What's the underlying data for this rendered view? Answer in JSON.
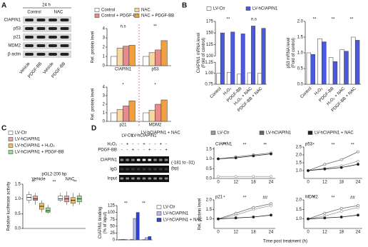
{
  "panel_labels": [
    "A",
    "B",
    "C",
    "D"
  ],
  "blot_a": {
    "time": "24 h",
    "groups": [
      "Control",
      "NAC"
    ],
    "lanes": [
      "Vehicle",
      "PDGF-BB",
      "Vehicle",
      "PDGF-BB"
    ],
    "rows": [
      "CIAPIN1",
      "p53",
      "p21",
      "MDM2",
      "β-actin"
    ]
  },
  "blot_d": {
    "groups": [
      "LV-Ctr",
      "LV-hCIAPIN1",
      "LV-hCIAPIN1 + NAC"
    ],
    "treatments": [
      {
        "name": "H₂O₂",
        "signs": [
          "-",
          "+",
          "-",
          "-",
          "+",
          "-",
          "-",
          "+",
          "-"
        ]
      },
      {
        "name": "PDGF-BB",
        "signs": [
          "-",
          "-",
          "+",
          "-",
          "-",
          "+",
          "-",
          "-",
          "+"
        ]
      }
    ],
    "rows": [
      "CIAPIN1",
      "IgG",
      "Input"
    ],
    "region": "(-181 to -31)",
    "unit": "(bp)"
  },
  "chart_data": [
    {
      "type": "bar",
      "categories": [
        "CIAPIN1",
        "p53"
      ],
      "ylabel": [
        "Rel. protein level"
      ],
      "ylim": [
        0,
        4
      ],
      "yticks": [
        0,
        1,
        2,
        3,
        4
      ],
      "annotations": [
        "n.s",
        "**"
      ],
      "series": [
        {
          "name": "Control",
          "color": "#ffffff",
          "values": [
            1,
            1
          ]
        },
        {
          "name": "NAC",
          "color": "#f7d9a0",
          "values": [
            1.9,
            1.4
          ]
        },
        {
          "name": "Control + PDGF-BB",
          "color": "#e98b8b",
          "values": [
            2.1,
            1.7
          ]
        },
        {
          "name": "NAC + PDGF-BB",
          "color": "#f0a040",
          "values": [
            2.2,
            2.7
          ]
        }
      ]
    },
    {
      "type": "bar",
      "categories": [
        "p21",
        "MDM2"
      ],
      "ylabel": [
        "Rel. protein level"
      ],
      "ylim": [
        0,
        4
      ],
      "yticks": [
        0,
        1,
        2,
        3,
        4
      ],
      "annotations": [
        "*",
        "*"
      ],
      "series": [
        {
          "color": "#ffffff",
          "values": [
            1,
            1
          ]
        },
        {
          "color": "#f7d9a0",
          "values": [
            1.4,
            1.3
          ]
        },
        {
          "color": "#e98b8b",
          "values": [
            1.8,
            2.0
          ]
        },
        {
          "color": "#f0a040",
          "values": [
            2.4,
            2.5
          ]
        }
      ]
    },
    {
      "type": "bar",
      "categories": [
        "Control",
        "H₂O₂",
        "PDGF-BB",
        "H₂O₂ + NAC",
        "PDGF-BB + NAC"
      ],
      "ylabel": [
        "CIAPIN1 mRNA level",
        "(Fold of control)"
      ],
      "annotations": [
        "**",
        "n.s"
      ],
      "segments": [
        {
          "ylim": [
            0.75,
            1.25
          ],
          "yticks": [
            0.75,
            {
              "value": 1,
              "label": "1.00"
            },
            1.25
          ]
        },
        {
          "ylim": [
            100,
            175
          ],
          "yticks": [
            100,
            125,
            150,
            175
          ]
        }
      ],
      "series": [
        {
          "name": "LV-Ctr",
          "color": "#ffffff",
          "values": [
            1,
            1.02,
            0.98,
            1.01,
            1.0
          ]
        },
        {
          "name": "LV-hCIAPIN1",
          "color": "#4a5ae0",
          "values": [
            150,
            152,
            148,
            165,
            160
          ]
        }
      ]
    },
    {
      "type": "bar",
      "categories": [
        "Control",
        "H₂O₂",
        "PDGF-BB",
        "H₂O₂ + NAC",
        "PDGF-BB + NAC"
      ],
      "ylabel": [
        "p53 mRNA level",
        "(Fold of control)"
      ],
      "annotations": [
        "**",
        "**",
        "**"
      ],
      "ylim": [
        0,
        2
      ],
      "yticks": [
        {
          "value": 0,
          "label": "0.0"
        },
        0.5,
        {
          "value": 1,
          "label": "1.0"
        },
        1.5,
        {
          "value": 2,
          "label": "2.0"
        }
      ],
      "series": [
        {
          "color": "#ffffff",
          "values": [
            1,
            1.45,
            0.85,
            1.1,
            1.5
          ]
        },
        {
          "color": "#4a5ae0",
          "values": [
            0.95,
            1.35,
            0.72,
            1.05,
            1.4
          ]
        }
      ]
    },
    {
      "type": "box",
      "title": "pGL2-200 bp",
      "categories": [
        "Vehicle",
        "NAC"
      ],
      "ylabel": [
        "Relative luciferase activity"
      ],
      "annotations": [
        "**",
        "**",
        "**"
      ],
      "ylim": [
        0,
        1.5
      ],
      "yticks": [
        {
          "value": 0,
          "label": "0.0"
        },
        0.5,
        {
          "value": 1,
          "label": "1.0"
        },
        1.5
      ],
      "series": [
        {
          "name": "LV-Ctr",
          "color": "#ffffff",
          "min": [
            0.85,
            0.9
          ],
          "q1": [
            0.95,
            0.95
          ],
          "median": [
            1.05,
            1.0
          ],
          "q3": [
            1.15,
            1.1
          ],
          "max": [
            1.25,
            1.2
          ]
        },
        {
          "name": "LV-hCIAPIN1",
          "color": "#f4a0a0",
          "min": [
            0.8,
            0.8
          ],
          "q1": [
            0.95,
            0.9
          ],
          "median": [
            1.0,
            1.0
          ],
          "q3": [
            1.1,
            1.1
          ],
          "max": [
            1.2,
            1.25
          ]
        },
        {
          "name": "LV-hCIAPIN1 + H₂O₂",
          "color": "#f0c060",
          "min": [
            0.55,
            0.75
          ],
          "q1": [
            0.65,
            0.85
          ],
          "median": [
            0.75,
            0.95
          ],
          "q3": [
            0.85,
            1.05
          ],
          "max": [
            0.95,
            1.2
          ]
        },
        {
          "name": "LV-hCIAPIN1 + PDGF-BB",
          "color": "#90e090",
          "min": [
            0.5,
            0.8
          ],
          "q1": [
            0.55,
            0.9
          ],
          "median": [
            0.6,
            1.0
          ],
          "q3": [
            0.7,
            1.1
          ],
          "max": [
            0.8,
            1.2
          ]
        }
      ]
    },
    {
      "type": "bar",
      "categories": [
        null,
        null,
        null
      ],
      "ylabel": [
        "CIAPIN1 binding",
        "(% of input)"
      ],
      "annotations": [
        "**",
        "**"
      ],
      "ylim": [
        0,
        125
      ],
      "yticks": [
        0,
        25,
        50,
        75,
        100,
        125
      ],
      "series": [
        {
          "name": "LV-Ctr",
          "color": "#ffffff",
          "values": [
            1,
            2,
            1
          ]
        },
        {
          "name": "LV-hCIAPIN1",
          "color": "#b0bdf5",
          "values": [
            2,
            78,
            8
          ]
        },
        {
          "name": "LV-hCIAPIN1 + NAC",
          "color": "#3040d0",
          "values": [
            1,
            100,
            12
          ]
        }
      ]
    },
    {
      "type": "line",
      "title": "CIAPIN1",
      "categories": [
        "0",
        "12",
        "18",
        "24"
      ],
      "ylim": [
        0,
        1.6
      ],
      "yticks": [
        {
          "value": 0,
          "label": "0.0"
        },
        0.5,
        {
          "value": 1,
          "label": "1.0"
        },
        1.5
      ],
      "annotations": [
        "**",
        "**",
        "**"
      ],
      "series": [
        {
          "name": "LV-Ctr",
          "color": "#999999",
          "values": [
            0.1,
            0.1,
            0.1,
            0.1
          ]
        },
        {
          "name": "LV-hCIAPIN1",
          "color": "#666666",
          "values": [
            1,
            1.1,
            1.2,
            1.3
          ]
        },
        {
          "name": "LV-hCIAPIN1 + NAC",
          "color": "#222222",
          "values": [
            1,
            1.05,
            1.15,
            1.25
          ]
        }
      ]
    },
    {
      "type": "line",
      "title": "p53",
      "categories": [
        "0",
        "12",
        "18",
        "24"
      ],
      "ylim": [
        0.5,
        2.5
      ],
      "yticks": [
        {
          "value": 1,
          "label": "1.0"
        },
        1.5,
        {
          "value": 2,
          "label": "2.0"
        },
        2.5
      ],
      "annotations": [
        "*",
        "**",
        "**"
      ],
      "series": [
        {
          "color": "#999999",
          "values": [
            1,
            1.15,
            1.3,
            1.6
          ]
        },
        {
          "color": "#666666",
          "values": [
            1,
            1.4,
            1.7,
            2.2
          ]
        },
        {
          "color": "#222222",
          "values": [
            1,
            1.1,
            1.2,
            1.4
          ]
        }
      ]
    },
    {
      "type": "line",
      "title": "p21",
      "categories": [
        "0",
        "12",
        "18",
        "24"
      ],
      "ylabel": [
        "Rel. protein level"
      ],
      "ylim": [
        0.5,
        2
      ],
      "yticks": [
        {
          "value": 1,
          "label": "1.0"
        },
        1.5,
        {
          "value": 2,
          "label": "2.0"
        }
      ],
      "annotations": [
        "*",
        "**",
        "##"
      ],
      "series": [
        {
          "color": "#999999",
          "values": [
            1,
            1.2,
            1.5,
            1.7
          ]
        },
        {
          "color": "#666666",
          "values": [
            1,
            1.3,
            1.6,
            1.8
          ]
        },
        {
          "color": "#222222",
          "values": [
            1,
            1.05,
            1.1,
            1.2
          ]
        }
      ]
    },
    {
      "type": "line",
      "title": "MDM2",
      "categories": [
        "0",
        "12",
        "18",
        "24"
      ],
      "xlabel": "Time post treatment (h)",
      "ylim": [
        0.5,
        2
      ],
      "yticks": [
        {
          "value": 1,
          "label": "1.0"
        },
        1.5,
        {
          "value": 2,
          "label": "2.0"
        }
      ],
      "annotations": [
        "*",
        "**",
        "##"
      ],
      "series": [
        {
          "color": "#999999",
          "values": [
            1,
            1.15,
            1.4,
            1.6
          ]
        },
        {
          "color": "#666666",
          "values": [
            1,
            1.3,
            1.55,
            1.7
          ]
        },
        {
          "color": "#222222",
          "values": [
            1,
            1.05,
            1.1,
            1.2
          ]
        }
      ]
    }
  ]
}
